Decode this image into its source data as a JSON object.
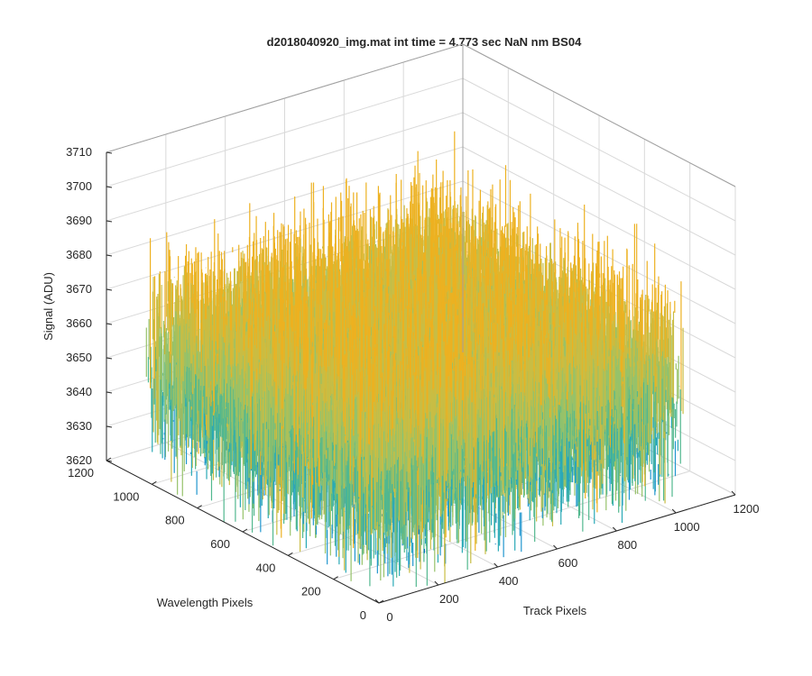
{
  "figure": {
    "background": "#ffffff",
    "axes_color": "#262626",
    "grid_color": "#d9d9d9"
  },
  "chart_data": {
    "type": "surface-3d",
    "title": "d2018040920_img.mat int time = 4.773 sec  NaN nm BS04",
    "xlabel": "Track Pixels",
    "ylabel": "Wavelength Pixels",
    "zlabel": "Signal (ADU)",
    "xlim": [
      0,
      1200
    ],
    "ylim": [
      0,
      1200
    ],
    "zlim": [
      3620,
      3710
    ],
    "xticks": [
      "0",
      "200",
      "400",
      "600",
      "800",
      "1000",
      "1200"
    ],
    "yticks": [
      "0",
      "200",
      "400",
      "600",
      "800",
      "1000",
      "1200"
    ],
    "zticks": [
      "3620",
      "3630",
      "3640",
      "3650",
      "3660",
      "3670",
      "3680",
      "3690",
      "3700",
      "3710"
    ],
    "grid": true,
    "data_extent": {
      "x": [
        0,
        1024
      ],
      "y": [
        0,
        1024
      ]
    },
    "mean_signal": 3655,
    "noise_peak_to_peak": 60,
    "colormap": [
      "#0072bd",
      "#2196cf",
      "#29a9b6",
      "#52b88f",
      "#96c26a",
      "#c9bd44",
      "#edb120"
    ]
  }
}
